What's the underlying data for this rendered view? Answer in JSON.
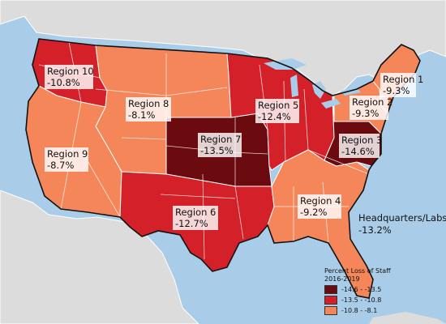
{
  "colors": {
    "water": "#a9cde8",
    "land_other": "#dcdcdc",
    "border": "#ffffff",
    "outline": "#111111",
    "high": "#6b0a0f",
    "mid": "#d42028",
    "low": "#f4865a"
  },
  "regions": [
    {
      "id": "r1",
      "name": "Region 1",
      "value": "-9.3%",
      "tier": "low"
    },
    {
      "id": "r2",
      "name": "Region 2",
      "value": "-9.3%",
      "tier": "low"
    },
    {
      "id": "r3",
      "name": "Region 3",
      "value": "-14.6%",
      "tier": "high"
    },
    {
      "id": "r4",
      "name": "Region 4",
      "value": "-9.2%",
      "tier": "low"
    },
    {
      "id": "r5",
      "name": "Region 5",
      "value": "-12.4%",
      "tier": "mid"
    },
    {
      "id": "r6",
      "name": "Region 6",
      "value": "-12.7%",
      "tier": "mid"
    },
    {
      "id": "r7",
      "name": "Region 7",
      "value": "-13.5%",
      "tier": "high"
    },
    {
      "id": "r8",
      "name": "Region 8",
      "value": "-8.1%",
      "tier": "low"
    },
    {
      "id": "r9",
      "name": "Region 9",
      "value": "-8.7%",
      "tier": "low"
    },
    {
      "id": "r10",
      "name": "Region 10",
      "value": "-10.8%",
      "tier": "mid"
    }
  ],
  "hq": {
    "name": "Headquarters/Labs",
    "value": "-13.2%"
  },
  "legend": {
    "title_line1": "Percent Loss of Staff",
    "title_line2": "2016-2019",
    "items": [
      {
        "label": "-14.6 - -13.5",
        "tier": "high"
      },
      {
        "label": "-13.5 - -10.8",
        "tier": "mid"
      },
      {
        "label": "-10.8 - -8.1",
        "tier": "low"
      }
    ]
  }
}
